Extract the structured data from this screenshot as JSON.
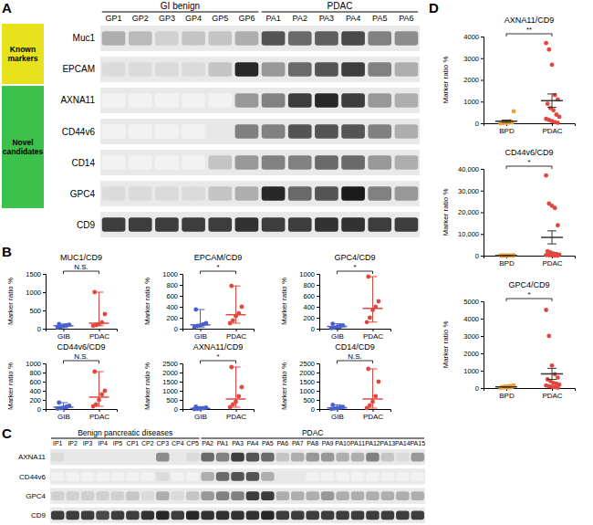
{
  "chart_data": [
    {
      "type": "blot",
      "panel": "A",
      "groups": [
        {
          "name": "GI benign",
          "categories": [
            "GP1",
            "GP2",
            "GP3",
            "GP4",
            "GP5",
            "GP6"
          ]
        },
        {
          "name": "PDAC",
          "categories": [
            "PA1",
            "PA2",
            "PA3",
            "PA4",
            "PA5",
            "PA6"
          ]
        }
      ],
      "row_groups": [
        {
          "name": "Known markers",
          "color": "#e8e21c",
          "series": [
            {
              "name": "Muc1",
              "values": [
                0.3,
                0.25,
                0.15,
                0.2,
                0.2,
                0.3,
                0.7,
                0.6,
                0.65,
                0.75,
                0.5,
                0.45
              ]
            },
            {
              "name": "EPCAM",
              "values": [
                0.1,
                0.1,
                0.1,
                0.1,
                0.2,
                0.9,
                0.4,
                0.6,
                0.7,
                0.8,
                0.5,
                0.3
              ]
            }
          ]
        },
        {
          "name": "Novel candidates",
          "color": "#3cc24a",
          "series": [
            {
              "name": "AXNA11",
              "values": [
                0,
                0,
                0,
                0,
                0,
                0.4,
                0.5,
                0.8,
                0.9,
                0.8,
                0.4,
                0.3
              ]
            },
            {
              "name": "CD44v6",
              "values": [
                0,
                0,
                0,
                0,
                0.05,
                0.5,
                0.5,
                0.7,
                0.7,
                0.7,
                0.5,
                0.3
              ]
            },
            {
              "name": "CD14",
              "values": [
                0,
                0,
                0,
                0,
                0.2,
                0.4,
                0.5,
                0.5,
                0.6,
                0.6,
                0.4,
                0.3
              ]
            },
            {
              "name": "GPC4",
              "values": [
                0.1,
                0.1,
                0.1,
                0.1,
                0.2,
                0.3,
                0.9,
                0.6,
                0.7,
                0.95,
                0.5,
                0.4
              ]
            }
          ]
        }
      ],
      "series": [
        {
          "name": "CD9",
          "values": [
            0.8,
            0.8,
            0.8,
            0.8,
            0.8,
            0.85,
            0.8,
            0.8,
            0.85,
            0.85,
            0.8,
            0.8
          ]
        }
      ],
      "zlim": [
        0,
        1
      ]
    },
    {
      "type": "scatter",
      "panel": "B",
      "title": "MUC1/CD9",
      "ylabel": "Marker ratio %",
      "categories": [
        "GIB",
        "PDAC"
      ],
      "colors": [
        "#4a5fd0",
        "#e0473f"
      ],
      "values": [
        [
          30,
          50,
          70,
          90,
          110,
          130
        ],
        [
          80,
          100,
          130,
          170,
          400,
          1000
        ]
      ],
      "median": [
        80,
        150
      ],
      "range": [
        [
          30,
          130
        ],
        [
          80,
          1000
        ]
      ],
      "ylim": [
        0,
        1500
      ],
      "yticks": [
        0,
        500,
        1000,
        1500
      ],
      "annotations": [
        "N.S."
      ]
    },
    {
      "type": "scatter",
      "title": "EPCAM/CD9",
      "ylabel": "Marker ratio %",
      "categories": [
        "GIB",
        "PDAC"
      ],
      "colors": [
        "#4a5fd0",
        "#e0473f"
      ],
      "values": [
        [
          30,
          50,
          60,
          80,
          100,
          350
        ],
        [
          100,
          150,
          230,
          280,
          400,
          780
        ]
      ],
      "median": [
        70,
        255
      ],
      "range": [
        [
          30,
          350
        ],
        [
          100,
          780
        ]
      ],
      "ylim": [
        0,
        1000
      ],
      "yticks": [
        0,
        200,
        400,
        600,
        800,
        1000
      ],
      "annotations": [
        "*"
      ]
    },
    {
      "type": "scatter",
      "title": "GPC4/CD9",
      "ylabel": "Marker ratio %",
      "categories": [
        "GIB",
        "PDAC"
      ],
      "colors": [
        "#4a5fd0",
        "#e0473f"
      ],
      "values": [
        [
          10,
          20,
          30,
          50,
          60,
          90
        ],
        [
          120,
          200,
          340,
          400,
          500,
          950
        ]
      ],
      "median": [
        40,
        370
      ],
      "range": [
        [
          10,
          90
        ],
        [
          120,
          950
        ]
      ],
      "ylim": [
        0,
        1000
      ],
      "yticks": [
        0,
        200,
        400,
        600,
        800,
        1000
      ],
      "annotations": [
        "*"
      ]
    },
    {
      "type": "scatter",
      "title": "CD44v6/CD9",
      "ylabel": "Marker ratio %",
      "categories": [
        "GIB",
        "PDAC"
      ],
      "colors": [
        "#4a5fd0",
        "#e0473f"
      ],
      "values": [
        [
          10,
          20,
          30,
          50,
          70,
          140
        ],
        [
          60,
          100,
          200,
          320,
          400,
          820
        ]
      ],
      "median": [
        40,
        260
      ],
      "range": [
        [
          10,
          140
        ],
        [
          60,
          820
        ]
      ],
      "ylim": [
        0,
        1000
      ],
      "yticks": [
        0,
        200,
        400,
        600,
        800,
        1000
      ],
      "annotations": [
        "N.S."
      ]
    },
    {
      "type": "scatter",
      "title": "AXNA11/CD9",
      "ylabel": "Marker ratio %",
      "categories": [
        "GIB",
        "PDAC"
      ],
      "colors": [
        "#4a5fd0",
        "#e0473f"
      ],
      "values": [
        [
          0,
          10,
          20,
          40,
          80,
          130
        ],
        [
          100,
          250,
          400,
          700,
          1200,
          2300
        ]
      ],
      "median": [
        30,
        550
      ],
      "range": [
        [
          0,
          130
        ],
        [
          100,
          2300
        ]
      ],
      "ylim": [
        0,
        2500
      ],
      "yticks": [
        0,
        500,
        1000,
        1500,
        2000,
        2500
      ],
      "annotations": [
        "*"
      ]
    },
    {
      "type": "scatter",
      "title": "CD14/CD9",
      "ylabel": "Marker ratio %",
      "categories": [
        "GIB",
        "PDAC"
      ],
      "colors": [
        "#4a5fd0",
        "#e0473f"
      ],
      "values": [
        [
          10,
          30,
          50,
          80,
          120,
          230
        ],
        [
          50,
          200,
          400,
          700,
          1500,
          2200
        ]
      ],
      "median": [
        65,
        550
      ],
      "range": [
        [
          10,
          230
        ],
        [
          50,
          2200
        ]
      ],
      "ylim": [
        0,
        2500
      ],
      "yticks": [
        0,
        500,
        1000,
        1500,
        2000,
        2500
      ],
      "annotations": [
        "N.S."
      ]
    },
    {
      "type": "blot",
      "panel": "C",
      "groups": [
        {
          "name": "Benign pancreatic diseases",
          "categories": [
            "IP1",
            "IP2",
            "IP3",
            "IP4",
            "IP5",
            "CP1",
            "CP2",
            "CP3",
            "CP4",
            "CP5"
          ]
        },
        {
          "name": "PDAC",
          "categories": [
            "PA2",
            "PA1",
            "PA3",
            "PA4",
            "PA5",
            "PA6",
            "PA7",
            "PA8",
            "PA9",
            "PA10",
            "PA11",
            "PA12",
            "PA13",
            "PA14",
            "PA15"
          ]
        }
      ],
      "series": [
        {
          "name": "AXNA11",
          "values": [
            0.1,
            0.05,
            0.05,
            0.05,
            0.05,
            0.05,
            0.05,
            0.45,
            0.05,
            0.1,
            0.6,
            0.5,
            0.8,
            0.7,
            0.6,
            0.2,
            0.3,
            0.4,
            0.4,
            0.3,
            0.3,
            0.5,
            0.2,
            0.1,
            0.4
          ]
        },
        {
          "name": "CD44v6",
          "values": [
            0,
            0,
            0,
            0,
            0,
            0,
            0,
            0.1,
            0,
            0,
            0.3,
            0.6,
            0.7,
            0.7,
            0.3,
            0.05,
            0.05,
            0,
            0,
            0,
            0,
            0,
            0,
            0,
            0
          ]
        },
        {
          "name": "GPC4",
          "values": [
            0.15,
            0.15,
            0.15,
            0.15,
            0.15,
            0.2,
            0.1,
            0.3,
            0.1,
            0.2,
            0.4,
            0.5,
            0.5,
            0.8,
            0.8,
            0.3,
            0.3,
            0.3,
            0.4,
            0.3,
            0.3,
            0.3,
            0.3,
            0.3,
            0.3
          ]
        },
        {
          "name": "CD9",
          "values": [
            0.8,
            0.8,
            0.8,
            0.75,
            0.8,
            0.8,
            0.85,
            0.9,
            0.8,
            0.9,
            0.85,
            0.85,
            0.85,
            0.85,
            0.9,
            0.8,
            0.8,
            0.8,
            0.8,
            0.8,
            0.8,
            0.8,
            0.8,
            0.8,
            0.8
          ]
        }
      ],
      "zlim": [
        0,
        1
      ]
    },
    {
      "type": "scatter",
      "panel": "D",
      "title": "AXNA11/CD9",
      "ylabel": "Marker ratio %",
      "categories": [
        "BPD",
        "PDAC"
      ],
      "colors": [
        "#f0a032",
        "#e0473f"
      ],
      "values": [
        [
          0,
          10,
          20,
          30,
          40,
          50,
          60,
          80,
          100,
          550
        ],
        [
          3700,
          3400,
          2700,
          1300,
          1100,
          900,
          700,
          600,
          400,
          300,
          200,
          150,
          100,
          50,
          20
        ]
      ],
      "mean": [
        94,
        1041
      ],
      "error": [
        52,
        310
      ],
      "ylim": [
        0,
        4000
      ],
      "yticks": [
        0,
        1000,
        2000,
        3000,
        4000
      ],
      "annotations": [
        "**"
      ]
    },
    {
      "type": "scatter",
      "title": "CD44v6/CD9",
      "ylabel": "Marker ratio %",
      "categories": [
        "BPD",
        "PDAC"
      ],
      "colors": [
        "#f0a032",
        "#e0473f"
      ],
      "values": [
        [
          0,
          0,
          10,
          20,
          30,
          40,
          50,
          60,
          70,
          100
        ],
        [
          37000,
          24000,
          23000,
          22000,
          14000,
          2000,
          1500,
          1000,
          800,
          500,
          300,
          200,
          100,
          50,
          0
        ]
      ],
      "mean": [
        38,
        8430
      ],
      "error": [
        10,
        3000
      ],
      "ylim": [
        0,
        40000
      ],
      "yticks": [
        0,
        {
          "value": 10000,
          "label": "10,000"
        },
        {
          "value": 20000,
          "label": "20,000"
        },
        {
          "value": 30000,
          "label": "30,000"
        },
        {
          "value": 40000,
          "label": "40,000"
        }
      ],
      "annotations": [
        "*"
      ]
    },
    {
      "type": "scatter",
      "title": "GPC4/CD9",
      "ylabel": "Marker ratio %",
      "categories": [
        "BPD",
        "PDAC"
      ],
      "colors": [
        "#f0a032",
        "#e0473f"
      ],
      "values": [
        [
          10,
          20,
          30,
          40,
          50,
          60,
          80,
          100,
          120,
          150
        ],
        [
          4500,
          3000,
          1300,
          800,
          600,
          500,
          400,
          300,
          250,
          200,
          150,
          100,
          80,
          50,
          20
        ]
      ],
      "mean": [
        66,
        817
      ],
      "error": [
        14,
        320
      ],
      "ylim": [
        0,
        5000
      ],
      "yticks": [
        0,
        1000,
        2000,
        3000,
        4000,
        5000
      ],
      "annotations": [
        "*"
      ]
    }
  ]
}
